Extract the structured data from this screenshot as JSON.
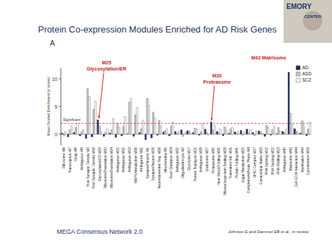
{
  "chart_data": {
    "type": "bar",
    "title": "Protein Co-expression Modules Enriched for AD Risk Genes",
    "panel_label": "A",
    "y_label": "Mean Scaled Enrichment (z score)",
    "categories": [
      "Ribosome M6",
      "Transcription M7",
      "Golgi M8",
      "Ambiguous M9",
      "Post-Synaptic Density M3",
      "Post-Synaptic Density M16",
      "Glycosylation/ER M29",
      "Ribosome/Translation M20",
      "Ribosome/Translation M34",
      "Ambiguous M15",
      "Ambiguous M10",
      "Ambiguous M13",
      "MAPK/Metabolism M36",
      "Ambiguous M11",
      "Synapse/Neuron M1",
      "Synapse/Neuron M18",
      "Neurotransmitter Reg. M26",
      "Mitochondria M5",
      "Axon Guidance M24",
      "Ambiguous M32",
      "Oligodendrocyte M2",
      "Glycolysis M17",
      "Protein Transport M21",
      "Ambiguous M39",
      "Endosome M27",
      "Proteasome M30",
      "Heat Shock/Folding M35",
      "Ribonucleoprotein Binding M28",
      "Translation Init. M31",
      "Protein Folding M41",
      "Sugar Metabolism M25",
      "Complement/Acute Phase M4",
      "MHC Complex M37",
      "Extracellular Matrix M33",
      "RNA Splicing M12",
      "RNA Splicing M22",
      "RNA Binding M23",
      "Ambiguous M40",
      "Matrisome M42",
      "Cell-ECM Interaction M44",
      "Myelination M43",
      "Cytoskeleton M19"
    ],
    "series": [
      {
        "name": "AD",
        "color": "#1f2a6b",
        "values": [
          0.2,
          -0.5,
          0.3,
          -0.3,
          -0.8,
          -0.5,
          2.6,
          -0.4,
          0.2,
          -0.6,
          -0.3,
          0.1,
          -0.4,
          0.3,
          -1.0,
          -0.7,
          -0.2,
          0.4,
          -0.3,
          0.5,
          0.8,
          0.6,
          0.3,
          -0.2,
          0.9,
          2.2,
          0.5,
          -0.3,
          0.2,
          0.4,
          0.7,
          0.9,
          0.3,
          0.6,
          -0.4,
          -0.2,
          0.1,
          0.5,
          11.2,
          1.0,
          0.2,
          -0.3
        ]
      },
      {
        "name": "ASD",
        "color": "#c4c4c4",
        "values": [
          -0.3,
          0.8,
          1.2,
          0.5,
          8.2,
          4.5,
          1.5,
          0.3,
          0.8,
          2.0,
          1.4,
          5.8,
          3.5,
          1.0,
          6.5,
          4.0,
          2.5,
          0.6,
          1.5,
          0.2,
          -0.4,
          0.7,
          1.1,
          0.4,
          0.3,
          0.8,
          0.2,
          1.3,
          0.9,
          0.1,
          -0.2,
          0.3,
          -0.3,
          0.5,
          1.6,
          0.8,
          1.2,
          0.3,
          3.8,
          0.6,
          2.4,
          0.9
        ]
      },
      {
        "name": "SCZ",
        "color": "#efefef",
        "values": [
          0.5,
          1.5,
          2.0,
          0.8,
          6.8,
          6.0,
          0.5,
          1.0,
          2.8,
          1.2,
          3.2,
          6.5,
          4.8,
          2.5,
          5.2,
          3.0,
          1.5,
          1.0,
          2.2,
          0.6,
          0.3,
          0.2,
          0.9,
          1.8,
          -0.2,
          1.6,
          0.9,
          0.7,
          1.2,
          0.5,
          0.4,
          0.8,
          0.6,
          0.2,
          1.2,
          1.4,
          0.6,
          0.9,
          1.8,
          0.3,
          1.5,
          2.2
        ]
      }
    ],
    "ylim": [
      -2,
      12
    ],
    "yticks": [
      0,
      5,
      10
    ],
    "reference_line": {
      "value": 1.96,
      "label": "Significant"
    },
    "annotations": [
      "M29",
      "Glycosylation/ER",
      "M30",
      "Proteasome",
      "M42 Matrisome"
    ],
    "footer": [
      "MEGA Consensus Network 2.0",
      "Johnson E and Dammer EB et al., in review"
    ],
    "logo_texts": [
      "EMORY",
      "CENTER"
    ],
    "legend": "top-right",
    "grid": false
  }
}
